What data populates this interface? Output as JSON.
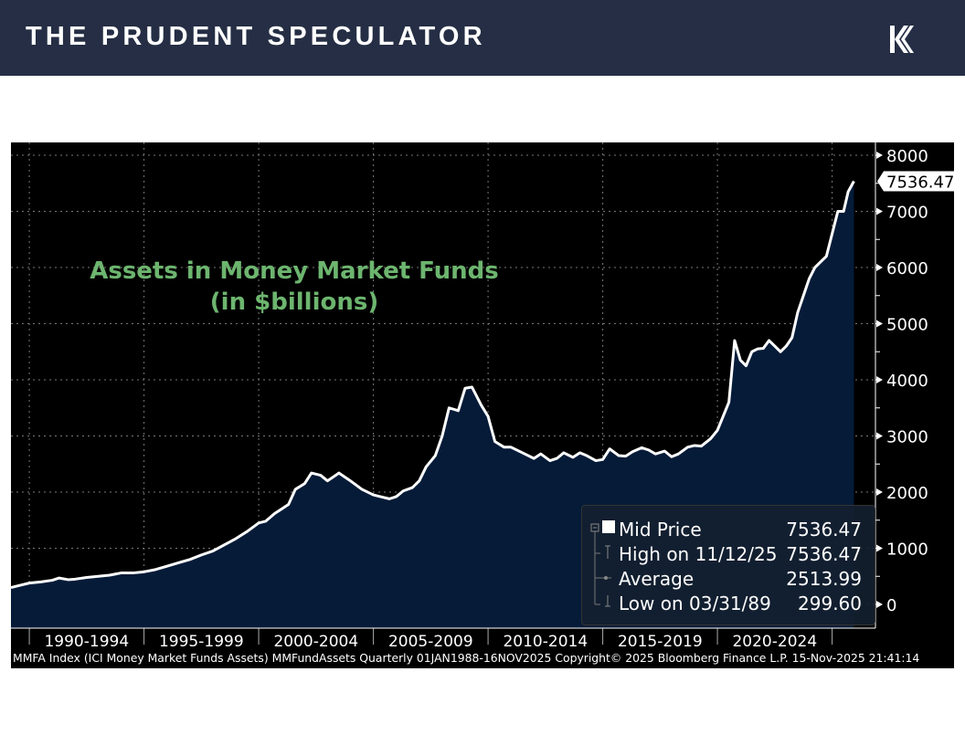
{
  "header": {
    "brand": "THE PRUDENT SPECULATOR",
    "logo_icon": "k-logo-icon",
    "background": "#252e44"
  },
  "chart_data": {
    "type": "area",
    "title": "Assets in Money Market Funds",
    "subtitle": "(in $billions)",
    "title_color": "#6db56f",
    "line_color": "#ffffff",
    "fill_color": "#051b38",
    "background": "#000000",
    "grid": true,
    "y_axis_position": "right",
    "ylim": [
      -400,
      8200
    ],
    "xlim": [
      1989.2,
      2027.0
    ],
    "y_ticks": [
      "8000",
      "7000",
      "6000",
      "5000",
      "4000",
      "3000",
      "2000",
      "1000",
      "0"
    ],
    "x_tick_labels": [
      "1990-1994",
      "1995-1999",
      "2000-2004",
      "2005-2009",
      "2010-2014",
      "2015-2019",
      "2020-2024"
    ],
    "last_value_label": "7536.47",
    "x": [
      1989.2,
      1989.6,
      1990,
      1990.5,
      1991,
      1991.3,
      1991.7,
      1992,
      1992.5,
      1993,
      1993.5,
      1994,
      1994.5,
      1995,
      1995.5,
      1996,
      1996.5,
      1997,
      1997.5,
      1998,
      1998.5,
      1999,
      1999.5,
      2000,
      2000.3,
      2000.7,
      2001,
      2001.3,
      2001.6,
      2002,
      2002.3,
      2002.7,
      2003,
      2003.5,
      2004,
      2004.5,
      2005,
      2005.3,
      2005.7,
      2006,
      2006.3,
      2006.7,
      2007,
      2007.3,
      2007.7,
      2008,
      2008.3,
      2008.7,
      2009,
      2009.3,
      2009.7,
      2010,
      2010.3,
      2010.7,
      2011,
      2011.5,
      2012,
      2012.3,
      2012.7,
      2013,
      2013.3,
      2013.7,
      2014,
      2014.3,
      2014.7,
      2015,
      2015.3,
      2015.7,
      2016,
      2016.3,
      2016.7,
      2017,
      2017.3,
      2017.7,
      2018,
      2018.3,
      2018.7,
      2019,
      2019.3,
      2019.7,
      2020,
      2020.25,
      2020.5,
      2020.75,
      2021,
      2021.25,
      2021.5,
      2021.75,
      2022,
      2022.25,
      2022.5,
      2022.75,
      2023,
      2023.25,
      2023.5,
      2023.75,
      2024,
      2024.25,
      2024.5,
      2024.75,
      2025,
      2025.25,
      2025.5,
      2025.7,
      2025.95
    ],
    "values": [
      300,
      340,
      380,
      400,
      430,
      470,
      440,
      450,
      480,
      500,
      520,
      560,
      560,
      580,
      620,
      680,
      740,
      800,
      880,
      950,
      1060,
      1170,
      1300,
      1450,
      1480,
      1620,
      1700,
      1780,
      2050,
      2150,
      2340,
      2300,
      2200,
      2340,
      2200,
      2050,
      1950,
      1920,
      1880,
      1920,
      2020,
      2080,
      2200,
      2450,
      2650,
      3000,
      3500,
      3450,
      3850,
      3870,
      3550,
      3350,
      2900,
      2800,
      2800,
      2700,
      2600,
      2680,
      2560,
      2600,
      2700,
      2620,
      2700,
      2650,
      2560,
      2580,
      2770,
      2650,
      2640,
      2720,
      2790,
      2750,
      2680,
      2730,
      2630,
      2680,
      2800,
      2830,
      2820,
      2950,
      3100,
      3350,
      3600,
      4700,
      4350,
      4250,
      4500,
      4550,
      4560,
      4700,
      4600,
      4500,
      4600,
      4750,
      5200,
      5500,
      5800,
      6000,
      6100,
      6200,
      6600,
      7000,
      7000,
      7350,
      7536.47
    ],
    "legend": {
      "rows": [
        {
          "label": "Mid Price",
          "value": "7536.47"
        },
        {
          "label": "High on 11/12/25",
          "value": "7536.47"
        },
        {
          "label": "Average",
          "value": "2513.99"
        },
        {
          "label": "Low on 03/31/89",
          "value": "299.60"
        }
      ]
    },
    "footer": "MMFA Index (ICI Money Market Funds Assets) MMFundAssets Quarterly 01JAN1988-16NOV2025 Copyright© 2025 Bloomberg Finance L.P. 15-Nov-2025 21:41:14"
  }
}
